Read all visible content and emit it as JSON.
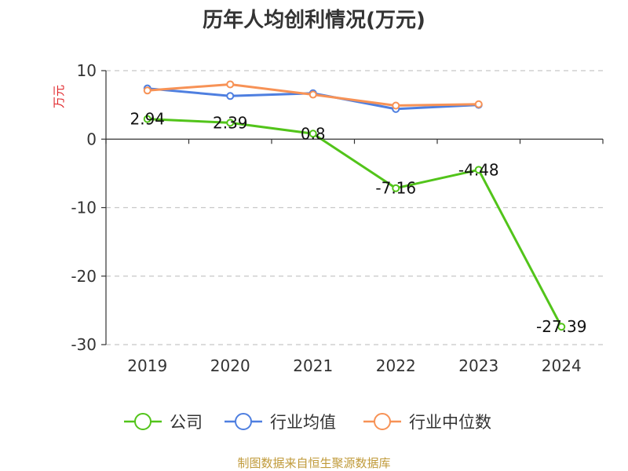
{
  "chart_data": {
    "type": "line",
    "title": "历年人均创利情况(万元)",
    "ylabel": "万元",
    "xlabel": "",
    "categories": [
      "2019",
      "2020",
      "2021",
      "2022",
      "2023",
      "2024"
    ],
    "ylim": [
      -30,
      10
    ],
    "yticks": [
      10,
      0,
      -10,
      -20,
      -30
    ],
    "grid": true,
    "legend_position": "bottom",
    "series": [
      {
        "name": "公司",
        "color": "#52c41a",
        "values": [
          2.94,
          2.39,
          0.8,
          -7.16,
          -4.48,
          -27.39
        ],
        "labels": [
          "2.94",
          "2.39",
          "0.8",
          "-7.16",
          "-4.48",
          "-27.39"
        ]
      },
      {
        "name": "行业均值",
        "color": "#4e7fe0",
        "values": [
          7.4,
          6.3,
          6.7,
          4.4,
          5.0,
          null
        ]
      },
      {
        "name": "行业中位数",
        "color": "#f79256",
        "values": [
          7.1,
          8.0,
          6.5,
          4.9,
          5.1,
          null
        ]
      }
    ]
  },
  "footer": {
    "source": "制图数据来自恒生聚源数据库"
  }
}
